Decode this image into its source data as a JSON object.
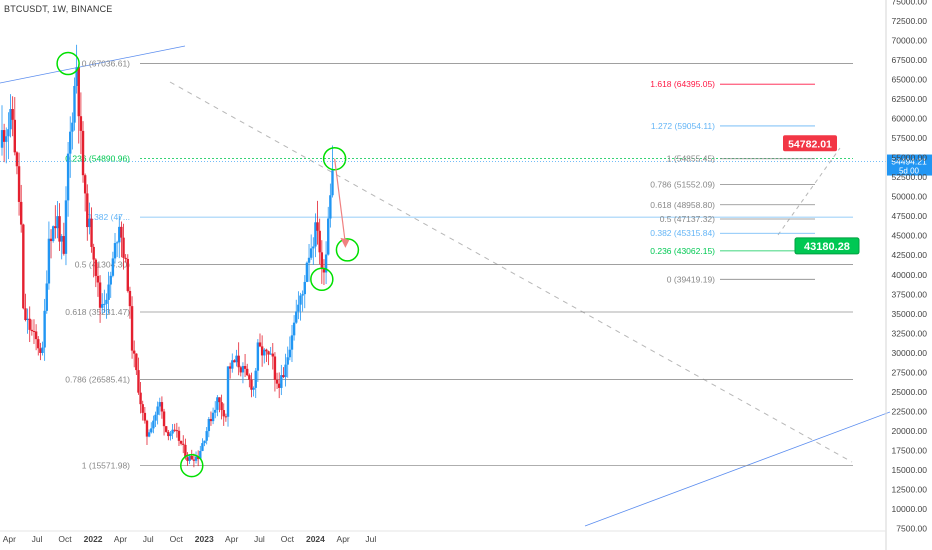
{
  "symbol_label": "BTCUSDT, 1W, BINANCE",
  "colors": {
    "up": "#2196f3",
    "down": "#e4202f",
    "fib_green": "#00c853",
    "fib_blue": "#64b5f6",
    "fib_red": "#ff1744",
    "fib_gray": "#888888",
    "circle": "#00e000",
    "trend_blue": "#5b8def",
    "dashed": "#b7b7b7",
    "projection": "#f08080"
  },
  "chart_data": {
    "type": "candlestick",
    "title": "",
    "y_axis_ticks": [
      75000,
      72500,
      70000,
      67500,
      65000,
      62500,
      60000,
      57500,
      55000,
      52500,
      50000,
      47500,
      45000,
      42500,
      40000,
      37500,
      35000,
      32500,
      30000,
      27500,
      25000,
      22500,
      20000,
      17500,
      15000,
      12500,
      10000,
      7500
    ],
    "y_axis_tick_labels": [
      "75000.00",
      "72500.00",
      "70000.00",
      "67500.00",
      "65000.00",
      "62500.00",
      "60000.00",
      "57500.00",
      "55000.00",
      "52500.00",
      "50000.00",
      "47500.00",
      "45000.00",
      "42500.00",
      "40000.00",
      "37500.00",
      "35000.00",
      "32500.00",
      "30000.00",
      "27500.00",
      "25000.00",
      "22500.00",
      "20000.00",
      "17500.00",
      "15000.00",
      "12500.00",
      "10000.00",
      "7500.00"
    ],
    "x_axis_labels": [
      "Apr",
      "Jul",
      "Oct",
      "2022",
      "Apr",
      "Jul",
      "Oct",
      "2023",
      "Apr",
      "Jul",
      "Oct",
      "2024",
      "Apr",
      "Jul"
    ],
    "x_axis_dates": [
      "2021-04-01",
      "2021-07-01",
      "2021-10-01",
      "2022-01-01",
      "2022-04-01",
      "2022-07-01",
      "2022-10-01",
      "2023-01-01",
      "2023-04-01",
      "2023-07-01",
      "2023-10-01",
      "2024-01-01",
      "2024-04-01",
      "2024-07-01"
    ],
    "price_path": [
      [
        "2021-03-08",
        58000
      ],
      [
        "2021-04-12",
        60000
      ],
      [
        "2021-05-10",
        46000
      ],
      [
        "2021-05-17",
        35000
      ],
      [
        "2021-06-21",
        32000
      ],
      [
        "2021-07-19",
        30000
      ],
      [
        "2021-08-09",
        45000
      ],
      [
        "2021-09-06",
        47000
      ],
      [
        "2021-09-27",
        42000
      ],
      [
        "2021-10-11",
        55000
      ],
      [
        "2021-10-25",
        61000
      ],
      [
        "2021-11-08",
        67000
      ],
      [
        "2021-11-22",
        57000
      ],
      [
        "2021-12-06",
        49000
      ],
      [
        "2022-01-03",
        43000
      ],
      [
        "2022-01-24",
        36000
      ],
      [
        "2022-02-21",
        38000
      ],
      [
        "2022-03-28",
        47000
      ],
      [
        "2022-04-25",
        39000
      ],
      [
        "2022-05-09",
        31000
      ],
      [
        "2022-06-13",
        22000
      ],
      [
        "2022-06-27",
        19500
      ],
      [
        "2022-08-08",
        23500
      ],
      [
        "2022-08-29",
        20000
      ],
      [
        "2022-10-03",
        19500
      ],
      [
        "2022-11-07",
        16500
      ],
      [
        "2022-12-12",
        16800
      ],
      [
        "2023-01-16",
        21000
      ],
      [
        "2023-02-13",
        24000
      ],
      [
        "2023-03-13",
        22000
      ],
      [
        "2023-03-20",
        28000
      ],
      [
        "2023-04-17",
        29000
      ],
      [
        "2023-06-12",
        25500
      ],
      [
        "2023-06-26",
        30500
      ],
      [
        "2023-08-14",
        29000
      ],
      [
        "2023-08-21",
        26000
      ],
      [
        "2023-09-18",
        26500
      ],
      [
        "2023-10-23",
        34500
      ],
      [
        "2023-11-20",
        37500
      ],
      [
        "2023-12-04",
        42000
      ],
      [
        "2024-01-08",
        46500
      ],
      [
        "2024-01-22",
        40000
      ],
      [
        "2024-02-05",
        43000
      ],
      [
        "2024-02-12",
        48000
      ],
      [
        "2024-02-19",
        51500
      ],
      [
        "2024-02-26",
        54000
      ]
    ]
  },
  "fib_upper": [
    {
      "label": "0 (67036.61)",
      "value": 67036.61
    },
    {
      "label": "0.236 (54890.96)",
      "value": 54890.96
    },
    {
      "label": "0.382 (47...",
      "value": 47376
    },
    {
      "label": "0.5 (41304.30)",
      "value": 41304.3
    },
    {
      "label": "0.618 (35231.47)",
      "value": 35231.47
    },
    {
      "label": "0.786 (26585.41)",
      "value": 26585.41
    },
    {
      "label": "1 (15571.98)",
      "value": 15571.98
    }
  ],
  "fib_lower": [
    {
      "label": "1.618 (64395.05)",
      "value": 64395.05
    },
    {
      "label": "1.272 (59054.11)",
      "value": 59054.11
    },
    {
      "label": "1 (54855.45)",
      "value": 54855.45
    },
    {
      "label": "0.786 (51552.09)",
      "value": 51552.09
    },
    {
      "label": "0.618 (48958.80)",
      "value": 48958.8
    },
    {
      "label": "0.5 (47137.32)",
      "value": 47137.32
    },
    {
      "label": "0.382 (45315.84)",
      "value": 45315.84
    },
    {
      "label": "0.236 (43062.15)",
      "value": 43062.15
    },
    {
      "label": "0 (39419.19)",
      "value": 39419.19
    }
  ],
  "annotations": {
    "target_high": {
      "date": "2024-04-08",
      "value": 54782.01,
      "label": "54782.01"
    },
    "target_low": {
      "date": "2024-04-15",
      "value": 43180.28,
      "label": "43180.28"
    },
    "current_price": {
      "value": 54494.21,
      "label": "54494.21"
    },
    "countdown": {
      "label": "5d 00"
    }
  },
  "circles": [
    {
      "date": "2021-10-11",
      "value": 67036.61
    },
    {
      "date": "2022-11-21",
      "value": 15571.98
    },
    {
      "date": "2024-01-22",
      "value": 39419.19
    },
    {
      "date": "2024-03-04",
      "value": 54855.45
    },
    {
      "date": "2024-04-15",
      "value": 43180.28
    }
  ]
}
